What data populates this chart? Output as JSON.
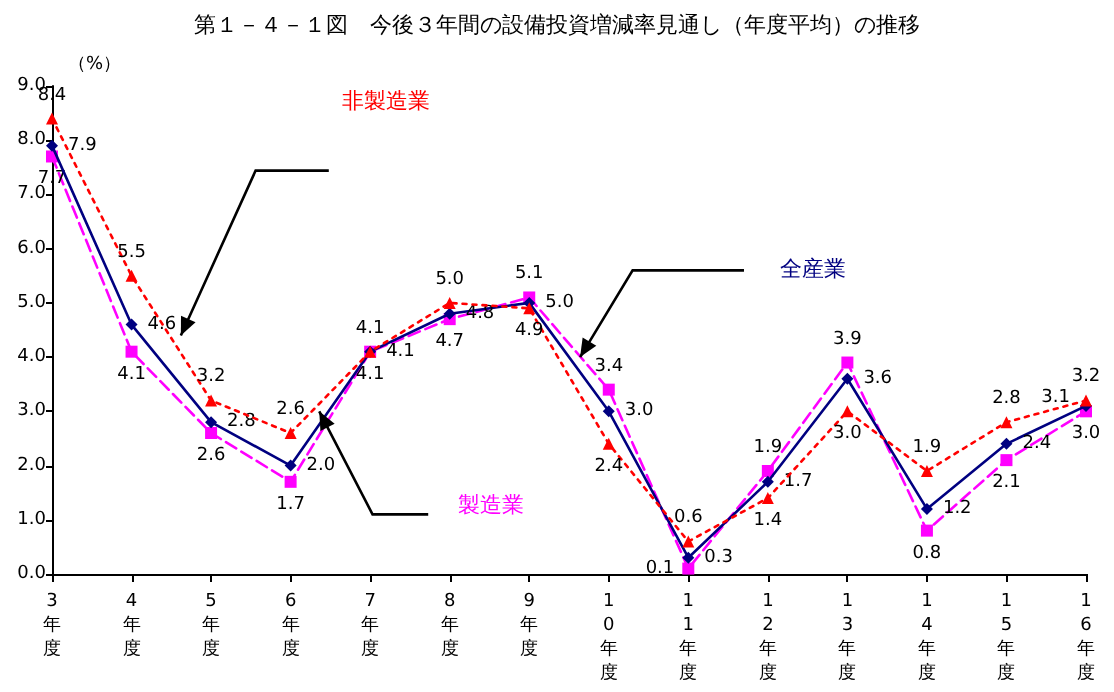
{
  "chart_data": {
    "type": "line",
    "title": "第１－４－１図　今後３年間の設備投資増減率見通し（年度平均）の推移",
    "ylabel": "（%）",
    "categories": [
      "3年度",
      "4年度",
      "5年度",
      "6年度",
      "7年度",
      "8年度",
      "9年度",
      "10年度",
      "11年度",
      "12年度",
      "13年度",
      "14年度",
      "15年度",
      "16年度"
    ],
    "series": [
      {
        "name": "非製造業",
        "color": "#ff0000",
        "marker": "triangle",
        "line_style": "dotted",
        "values": [
          8.4,
          5.5,
          3.2,
          2.6,
          4.1,
          5.0,
          4.9,
          2.4,
          0.6,
          1.4,
          3.0,
          1.9,
          2.8,
          3.2
        ],
        "value_labels": [
          "8.4",
          "5.5",
          "3.2",
          "2.6",
          "4.1",
          "5.0",
          "4.9",
          "2.4",
          "0.6",
          "1.4",
          "3.0",
          "1.9",
          "2.8",
          "3.2"
        ]
      },
      {
        "name": "全産業",
        "color": "#000080",
        "marker": "diamond",
        "line_style": "solid",
        "values": [
          7.9,
          4.6,
          2.8,
          2.0,
          4.1,
          4.8,
          5.0,
          3.0,
          0.3,
          1.7,
          3.6,
          1.2,
          2.4,
          3.1
        ],
        "value_labels": [
          "7.9",
          "4.6",
          "2.8",
          "2.0",
          "4.1",
          "4.8",
          "5.0",
          "3.0",
          "0.3",
          "1.7",
          "3.6",
          "1.2",
          "2.4",
          "3.1"
        ]
      },
      {
        "name": "製造業",
        "color": "#ff00ff",
        "marker": "square",
        "line_style": "dashed",
        "values": [
          7.7,
          4.1,
          2.6,
          1.7,
          4.1,
          4.7,
          5.1,
          3.4,
          0.1,
          1.9,
          3.9,
          0.8,
          2.1,
          3.0
        ],
        "value_labels": [
          "7.7",
          "4.1",
          "2.6",
          "1.7",
          "4.1",
          "4.7",
          "5.1",
          "3.4",
          "0.1",
          "1.9",
          "3.9",
          "0.8",
          "2.1",
          "3.0"
        ]
      }
    ],
    "ylim": [
      0,
      9
    ],
    "yticks": [
      {
        "value": 0,
        "label": "0.0"
      },
      {
        "value": 1,
        "label": "1.0"
      },
      {
        "value": 2,
        "label": "2.0"
      },
      {
        "value": 3,
        "label": "3.0"
      },
      {
        "value": 4,
        "label": "4.0"
      },
      {
        "value": 5,
        "label": "5.0"
      },
      {
        "value": 6,
        "label": "6.0"
      },
      {
        "value": 7,
        "label": "7.0"
      },
      {
        "value": 8,
        "label": "8.0"
      },
      {
        "value": 9,
        "label": "9.0"
      }
    ],
    "grid": false,
    "legend": false
  }
}
